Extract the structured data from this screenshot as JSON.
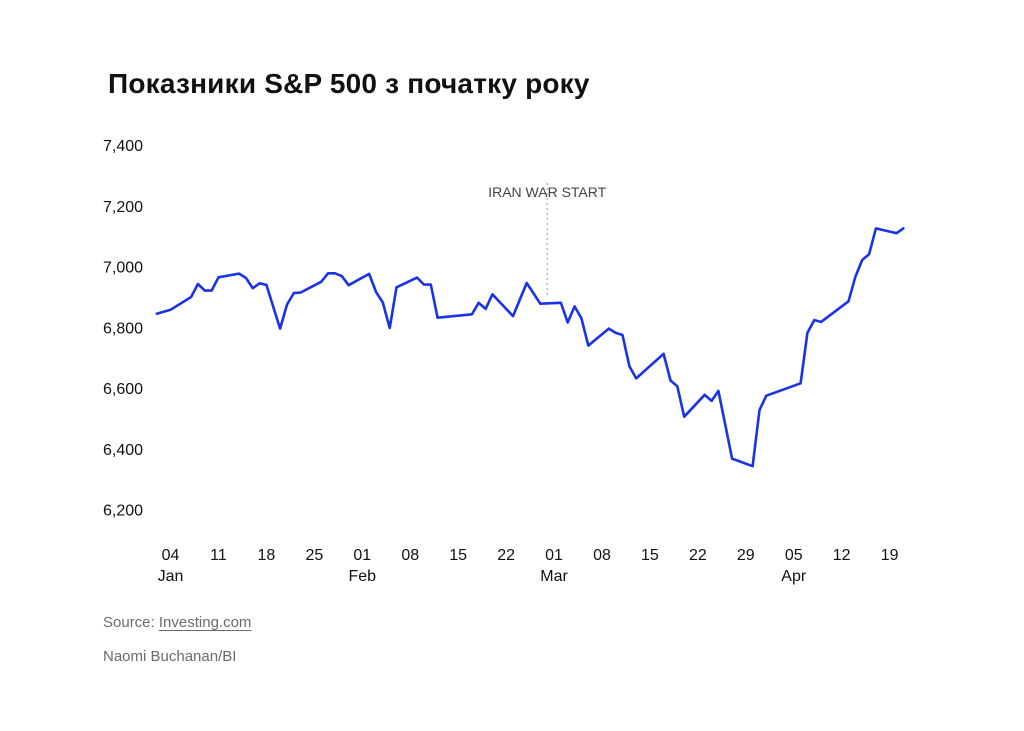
{
  "title": "Показники S&P 500 з початку року",
  "footer": {
    "source_label": "Source:",
    "source_link": "Investing.com",
    "credit": "Naomi Buchanan/BI"
  },
  "colors": {
    "line": "#1a33e6",
    "text": "#111111",
    "muted": "#6b6b6b",
    "annotation": "#444444"
  },
  "chart_data": {
    "type": "line",
    "title": "Показники S&P 500 з початку року",
    "xlabel": "",
    "ylabel": "",
    "grid": false,
    "ylim": [
      6100,
      7440
    ],
    "y_ticks": [
      6200,
      6400,
      6600,
      6800,
      7000,
      7200,
      7400
    ],
    "y_tick_labels": [
      "6,200",
      "6,400",
      "6,600",
      "6,800",
      "7,000",
      "7,200",
      "7,400"
    ],
    "x_range": [
      "2026-01-01",
      "2026-04-23"
    ],
    "x_ticks": [
      {
        "date": "2026-01-04",
        "day": "04",
        "month": "Jan"
      },
      {
        "date": "2026-01-11",
        "day": "11",
        "month": ""
      },
      {
        "date": "2026-01-18",
        "day": "18",
        "month": ""
      },
      {
        "date": "2026-01-25",
        "day": "25",
        "month": ""
      },
      {
        "date": "2026-02-01",
        "day": "01",
        "month": "Feb"
      },
      {
        "date": "2026-02-08",
        "day": "08",
        "month": ""
      },
      {
        "date": "2026-02-15",
        "day": "15",
        "month": ""
      },
      {
        "date": "2026-02-22",
        "day": "22",
        "month": ""
      },
      {
        "date": "2026-03-01",
        "day": "01",
        "month": "Mar"
      },
      {
        "date": "2026-03-08",
        "day": "08",
        "month": ""
      },
      {
        "date": "2026-03-15",
        "day": "15",
        "month": ""
      },
      {
        "date": "2026-03-22",
        "day": "22",
        "month": ""
      },
      {
        "date": "2026-03-29",
        "day": "29",
        "month": ""
      },
      {
        "date": "2026-04-05",
        "day": "05",
        "month": "Apr"
      },
      {
        "date": "2026-04-12",
        "day": "12",
        "month": ""
      },
      {
        "date": "2026-04-19",
        "day": "19",
        "month": ""
      }
    ],
    "annotations": [
      {
        "date": "2026-02-28",
        "text": "IRAN WAR START"
      }
    ],
    "series": [
      {
        "name": "",
        "points": [
          [
            "2026-01-02",
            6845
          ],
          [
            "2026-01-04",
            6858
          ],
          [
            "2026-01-07",
            6900
          ],
          [
            "2026-01-08",
            6943
          ],
          [
            "2026-01-09",
            6921
          ],
          [
            "2026-01-10",
            6921
          ],
          [
            "2026-01-11",
            6965
          ],
          [
            "2026-01-14",
            6977
          ],
          [
            "2026-01-15",
            6963
          ],
          [
            "2026-01-16",
            6929
          ],
          [
            "2026-01-17",
            6945
          ],
          [
            "2026-01-18",
            6940
          ],
          [
            "2026-01-20",
            6796
          ],
          [
            "2026-01-21",
            6875
          ],
          [
            "2026-01-22",
            6913
          ],
          [
            "2026-01-23",
            6915
          ],
          [
            "2026-01-26",
            6950
          ],
          [
            "2026-01-27",
            6978
          ],
          [
            "2026-01-28",
            6978
          ],
          [
            "2026-01-29",
            6969
          ],
          [
            "2026-01-30",
            6939
          ],
          [
            "2026-02-02",
            6976
          ],
          [
            "2026-02-03",
            6917
          ],
          [
            "2026-02-04",
            6882
          ],
          [
            "2026-02-05",
            6798
          ],
          [
            "2026-02-06",
            6932
          ],
          [
            "2026-02-09",
            6964
          ],
          [
            "2026-02-10",
            6941
          ],
          [
            "2026-02-11",
            6941
          ],
          [
            "2026-02-12",
            6832
          ],
          [
            "2026-02-17",
            6843
          ],
          [
            "2026-02-18",
            6881
          ],
          [
            "2026-02-19",
            6861
          ],
          [
            "2026-02-20",
            6909
          ],
          [
            "2026-02-23",
            6837
          ],
          [
            "2026-02-25",
            6946
          ],
          [
            "2026-02-27",
            6878
          ],
          [
            "2026-03-02",
            6881
          ],
          [
            "2026-03-03",
            6816
          ],
          [
            "2026-03-04",
            6869
          ],
          [
            "2026-03-05",
            6830
          ],
          [
            "2026-03-06",
            6740
          ],
          [
            "2026-03-09",
            6796
          ],
          [
            "2026-03-10",
            6782
          ],
          [
            "2026-03-11",
            6775
          ],
          [
            "2026-03-12",
            6672
          ],
          [
            "2026-03-13",
            6632
          ],
          [
            "2026-03-17",
            6713
          ],
          [
            "2026-03-18",
            6625
          ],
          [
            "2026-03-19",
            6606
          ],
          [
            "2026-03-20",
            6506
          ],
          [
            "2026-03-23",
            6578
          ],
          [
            "2026-03-24",
            6558
          ],
          [
            "2026-03-25",
            6591
          ],
          [
            "2026-03-27",
            6368
          ],
          [
            "2026-03-30",
            6343
          ],
          [
            "2026-03-31",
            6528
          ],
          [
            "2026-04-01",
            6575
          ],
          [
            "2026-04-06",
            6616
          ],
          [
            "2026-04-07",
            6782
          ],
          [
            "2026-04-08",
            6824
          ],
          [
            "2026-04-09",
            6818
          ],
          [
            "2026-04-13",
            6886
          ],
          [
            "2026-04-14",
            6967
          ],
          [
            "2026-04-15",
            7022
          ],
          [
            "2026-04-16",
            7041
          ],
          [
            "2026-04-17",
            7126
          ],
          [
            "2026-04-20",
            7110
          ],
          [
            "2026-04-21",
            7126
          ]
        ]
      }
    ]
  }
}
